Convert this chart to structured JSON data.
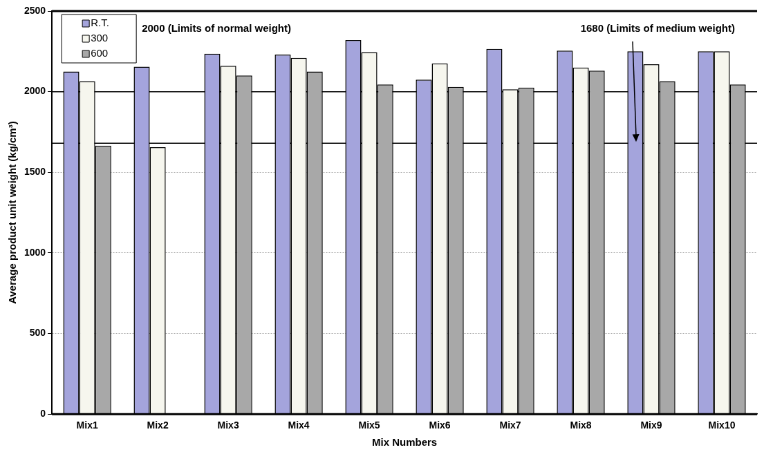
{
  "chart_data": {
    "type": "bar",
    "xlabel": "Mix Numbers",
    "ylabel": "Average product unit weight (kg/cm³)",
    "categories": [
      "Mix1",
      "Mix2",
      "Mix3",
      "Mix4",
      "Mix5",
      "Mix6",
      "Mix7",
      "Mix8",
      "Mix9",
      "Mix10"
    ],
    "series": [
      {
        "name": "R.T.",
        "color": "#a4a4dc",
        "values": [
          2125,
          2155,
          2235,
          2230,
          2320,
          2075,
          2265,
          2255,
          2250,
          2250
        ]
      },
      {
        "name": "300",
        "color": "#f6f6ee",
        "values": [
          2065,
          1655,
          2160,
          2210,
          2245,
          2175,
          2015,
          2150,
          2170,
          2250
        ]
      },
      {
        "name": "600",
        "color": "#a8a8a8",
        "values": [
          1665,
          null,
          2100,
          2125,
          2045,
          2030,
          2025,
          2130,
          2065,
          2045
        ]
      }
    ],
    "ylim": [
      0,
      2500
    ],
    "yticks": [
      0,
      500,
      1000,
      1500,
      2000,
      2500
    ],
    "ref_lines": [
      {
        "axis": "y",
        "value": 2000,
        "color": "#000000"
      },
      {
        "axis": "y",
        "value": 1680,
        "color": "#000000"
      }
    ],
    "annotations": [
      "2000 (Limits of normal weight)",
      "1680 (Limits of medium weight)"
    ],
    "grid": "y",
    "legend": "top left"
  }
}
